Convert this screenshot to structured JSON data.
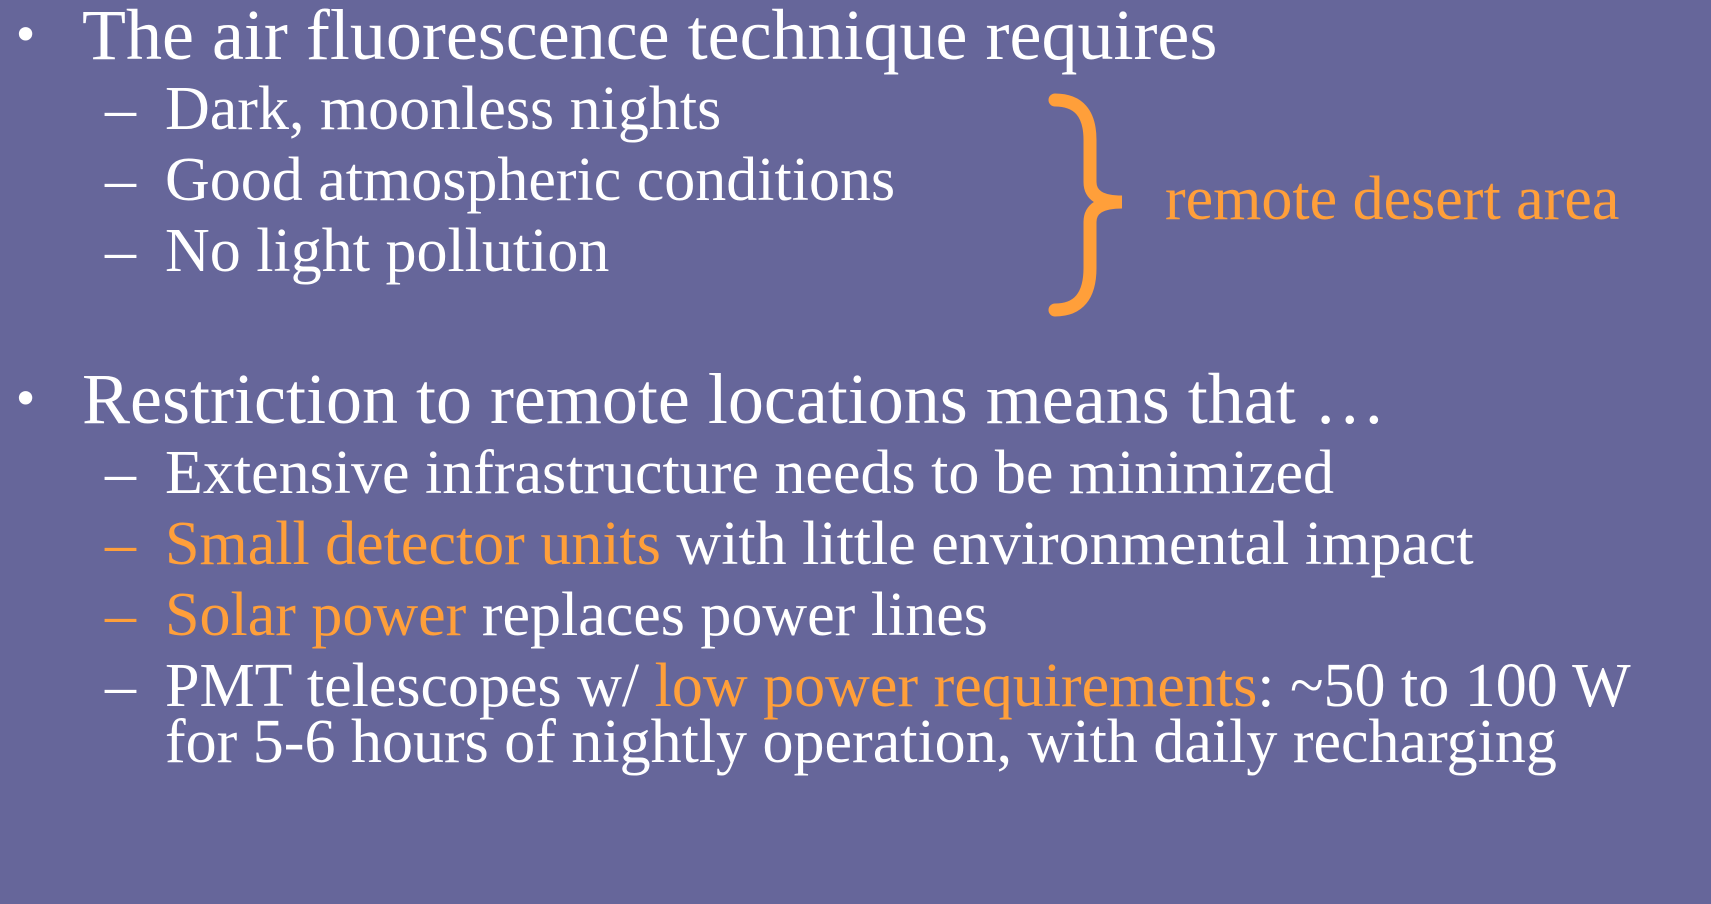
{
  "groups": [
    {
      "heading": "The air fluorescence technique requires",
      "items": [
        {
          "segments": [
            {
              "text": "Dark, moonless nights",
              "color": "#ffffff"
            }
          ]
        },
        {
          "segments": [
            {
              "text": "Good atmospheric conditions",
              "color": "#ffffff"
            }
          ]
        },
        {
          "segments": [
            {
              "text": "No light pollution",
              "color": "#ffffff"
            }
          ]
        }
      ],
      "brace_note": {
        "text": "remote desert area",
        "color": "#ff9f3a"
      }
    },
    {
      "heading": "Restriction to remote locations means that …",
      "items": [
        {
          "segments": [
            {
              "text": "Extensive infrastructure needs to be minimized",
              "color": "#ffffff"
            }
          ]
        },
        {
          "segments": [
            {
              "text": "Small detector units",
              "color": "#ff9f3a"
            },
            {
              "text": " with little environmental impact",
              "color": "#ffffff"
            }
          ]
        },
        {
          "segments": [
            {
              "text": "Solar power",
              "color": "#ff9f3a"
            },
            {
              "text": " replaces power lines",
              "color": "#ffffff"
            }
          ]
        },
        {
          "segments": [
            {
              "text": "PMT telescopes w/ ",
              "color": "#ffffff"
            },
            {
              "text": "low power requirements",
              "color": "#ff9f3a"
            },
            {
              "text": ": ~50 to 100 W for 5-6 hours of nightly operation, with daily recharging",
              "color": "#ffffff"
            }
          ]
        }
      ]
    }
  ]
}
